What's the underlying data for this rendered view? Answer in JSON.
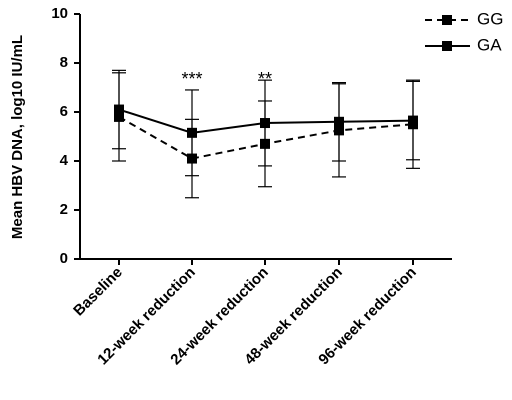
{
  "chart_data": {
    "type": "line",
    "ylabel": "Mean HBV DNA, log10 IU/mL",
    "xlabel": "",
    "ylim": [
      0,
      10
    ],
    "yticks": [
      0,
      2,
      4,
      6,
      8,
      10
    ],
    "categories": [
      "Baseline",
      "12-week reduction",
      "24-week reduction",
      "48-week reduction",
      "96-week reduction"
    ],
    "series": [
      {
        "name": "GG",
        "line_style": "dashed",
        "color": "#000000",
        "values": [
          5.8,
          4.1,
          4.7,
          5.25,
          5.5
        ],
        "error": [
          1.8,
          1.6,
          1.75,
          1.9,
          1.8
        ]
      },
      {
        "name": "GA",
        "line_style": "solid",
        "color": "#000000",
        "values": [
          6.1,
          5.15,
          5.55,
          5.6,
          5.65
        ],
        "error": [
          1.6,
          1.75,
          1.75,
          1.6,
          1.6
        ]
      }
    ],
    "annotations": [
      {
        "category": "12-week reduction",
        "text": "***"
      },
      {
        "category": "24-week reduction",
        "text": "**"
      }
    ],
    "legend": "top-right",
    "grid": false
  }
}
